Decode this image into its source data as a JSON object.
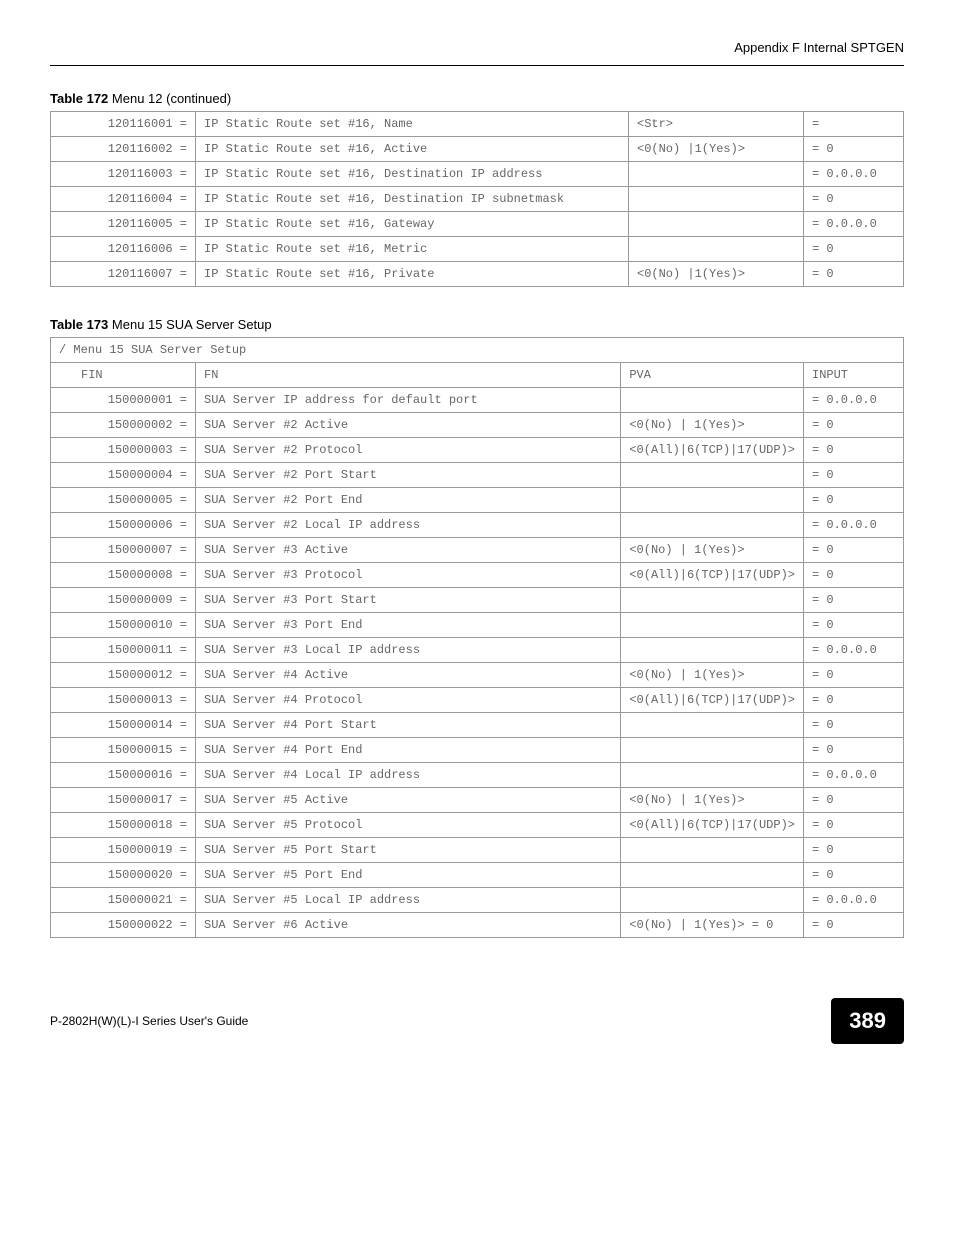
{
  "header": {
    "section": "Appendix F Internal SPTGEN"
  },
  "table172": {
    "title_bold": "Table 172",
    "title_normal": "Menu 12  (continued)",
    "rows": [
      {
        "fin": "120116001 =",
        "fn": "IP Static Route set #16, Name",
        "pva": "<Str>",
        "input": "="
      },
      {
        "fin": "120116002 =",
        "fn": "IP Static Route set #16, Active",
        "pva": "<0(No) |1(Yes)>",
        "input": "= 0"
      },
      {
        "fin": "120116003 =",
        "fn": "IP Static Route set #16, Destination IP address",
        "pva": "",
        "input": "= 0.0.0.0"
      },
      {
        "fin": "120116004 =",
        "fn": "IP Static Route set #16, Destination IP subnetmask",
        "pva": "",
        "input": "= 0"
      },
      {
        "fin": "120116005 =",
        "fn": "IP Static Route set #16, Gateway",
        "pva": "",
        "input": "= 0.0.0.0"
      },
      {
        "fin": "120116006 =",
        "fn": "IP Static Route set #16, Metric",
        "pva": "",
        "input": "= 0"
      },
      {
        "fin": "120116007 =",
        "fn": "IP Static Route set #16, Private",
        "pva": "<0(No) |1(Yes)>",
        "input": "= 0"
      }
    ]
  },
  "table173": {
    "title_bold": "Table 173",
    "title_normal": "Menu 15 SUA Server Setup",
    "header_row": "/ Menu 15 SUA Server Setup",
    "columns": {
      "col1": "FIN",
      "col2": "FN",
      "col3": "PVA",
      "col4": "INPUT"
    },
    "rows": [
      {
        "fin": "150000001 =",
        "fn": "SUA Server IP address for default port",
        "pva": "",
        "input": "= 0.0.0.0"
      },
      {
        "fin": "150000002 =",
        "fn": "SUA Server #2 Active",
        "pva": "<0(No) | 1(Yes)>",
        "input": "= 0"
      },
      {
        "fin": "150000003 =",
        "fn": "SUA Server #2 Protocol",
        "pva": "<0(All)|6(TCP)|17(UDP)>",
        "input": "= 0"
      },
      {
        "fin": "150000004 =",
        "fn": "SUA Server #2 Port Start",
        "pva": "",
        "input": "= 0"
      },
      {
        "fin": "150000005 =",
        "fn": "SUA Server #2 Port End",
        "pva": "",
        "input": "= 0"
      },
      {
        "fin": "150000006 =",
        "fn": "SUA Server #2 Local IP address",
        "pva": "",
        "input": "= 0.0.0.0"
      },
      {
        "fin": "150000007 =",
        "fn": "SUA Server #3 Active",
        "pva": "<0(No) | 1(Yes)>",
        "input": "= 0"
      },
      {
        "fin": "150000008 =",
        "fn": "SUA Server #3 Protocol",
        "pva": "<0(All)|6(TCP)|17(UDP)>",
        "input": "= 0"
      },
      {
        "fin": "150000009 =",
        "fn": "SUA Server #3 Port Start",
        "pva": "",
        "input": "= 0"
      },
      {
        "fin": "150000010 =",
        "fn": "SUA Server #3 Port End",
        "pva": "",
        "input": "= 0"
      },
      {
        "fin": "150000011 =",
        "fn": "SUA Server #3 Local IP address",
        "pva": "",
        "input": "= 0.0.0.0"
      },
      {
        "fin": "150000012 =",
        "fn": "SUA Server #4 Active",
        "pva": "<0(No) | 1(Yes)>",
        "input": "= 0"
      },
      {
        "fin": "150000013 =",
        "fn": "SUA Server #4 Protocol",
        "pva": "<0(All)|6(TCP)|17(UDP)>",
        "input": "= 0"
      },
      {
        "fin": "150000014 =",
        "fn": "SUA Server #4 Port Start",
        "pva": "",
        "input": "= 0"
      },
      {
        "fin": "150000015 =",
        "fn": "SUA Server #4 Port End",
        "pva": "",
        "input": "= 0"
      },
      {
        "fin": "150000016 =",
        "fn": "SUA Server #4 Local IP address",
        "pva": "",
        "input": "= 0.0.0.0"
      },
      {
        "fin": "150000017 =",
        "fn": "SUA Server #5 Active",
        "pva": "<0(No) | 1(Yes)>",
        "input": "= 0"
      },
      {
        "fin": "150000018 =",
        "fn": "SUA Server #5 Protocol",
        "pva": "<0(All)|6(TCP)|17(UDP)>",
        "input": "= 0"
      },
      {
        "fin": "150000019 =",
        "fn": "SUA Server #5 Port Start",
        "pva": "",
        "input": "= 0"
      },
      {
        "fin": "150000020 =",
        "fn": "SUA Server #5 Port End",
        "pva": "",
        "input": "= 0"
      },
      {
        "fin": "150000021 =",
        "fn": "SUA Server #5 Local IP address",
        "pva": "",
        "input": "= 0.0.0.0"
      },
      {
        "fin": "150000022 =",
        "fn": "SUA Server #6 Active",
        "pva": "<0(No) | 1(Yes)> = 0",
        "input": "= 0"
      }
    ]
  },
  "footer": {
    "guide_name": "P-2802H(W)(L)-I Series User's Guide",
    "page_number": "389"
  }
}
